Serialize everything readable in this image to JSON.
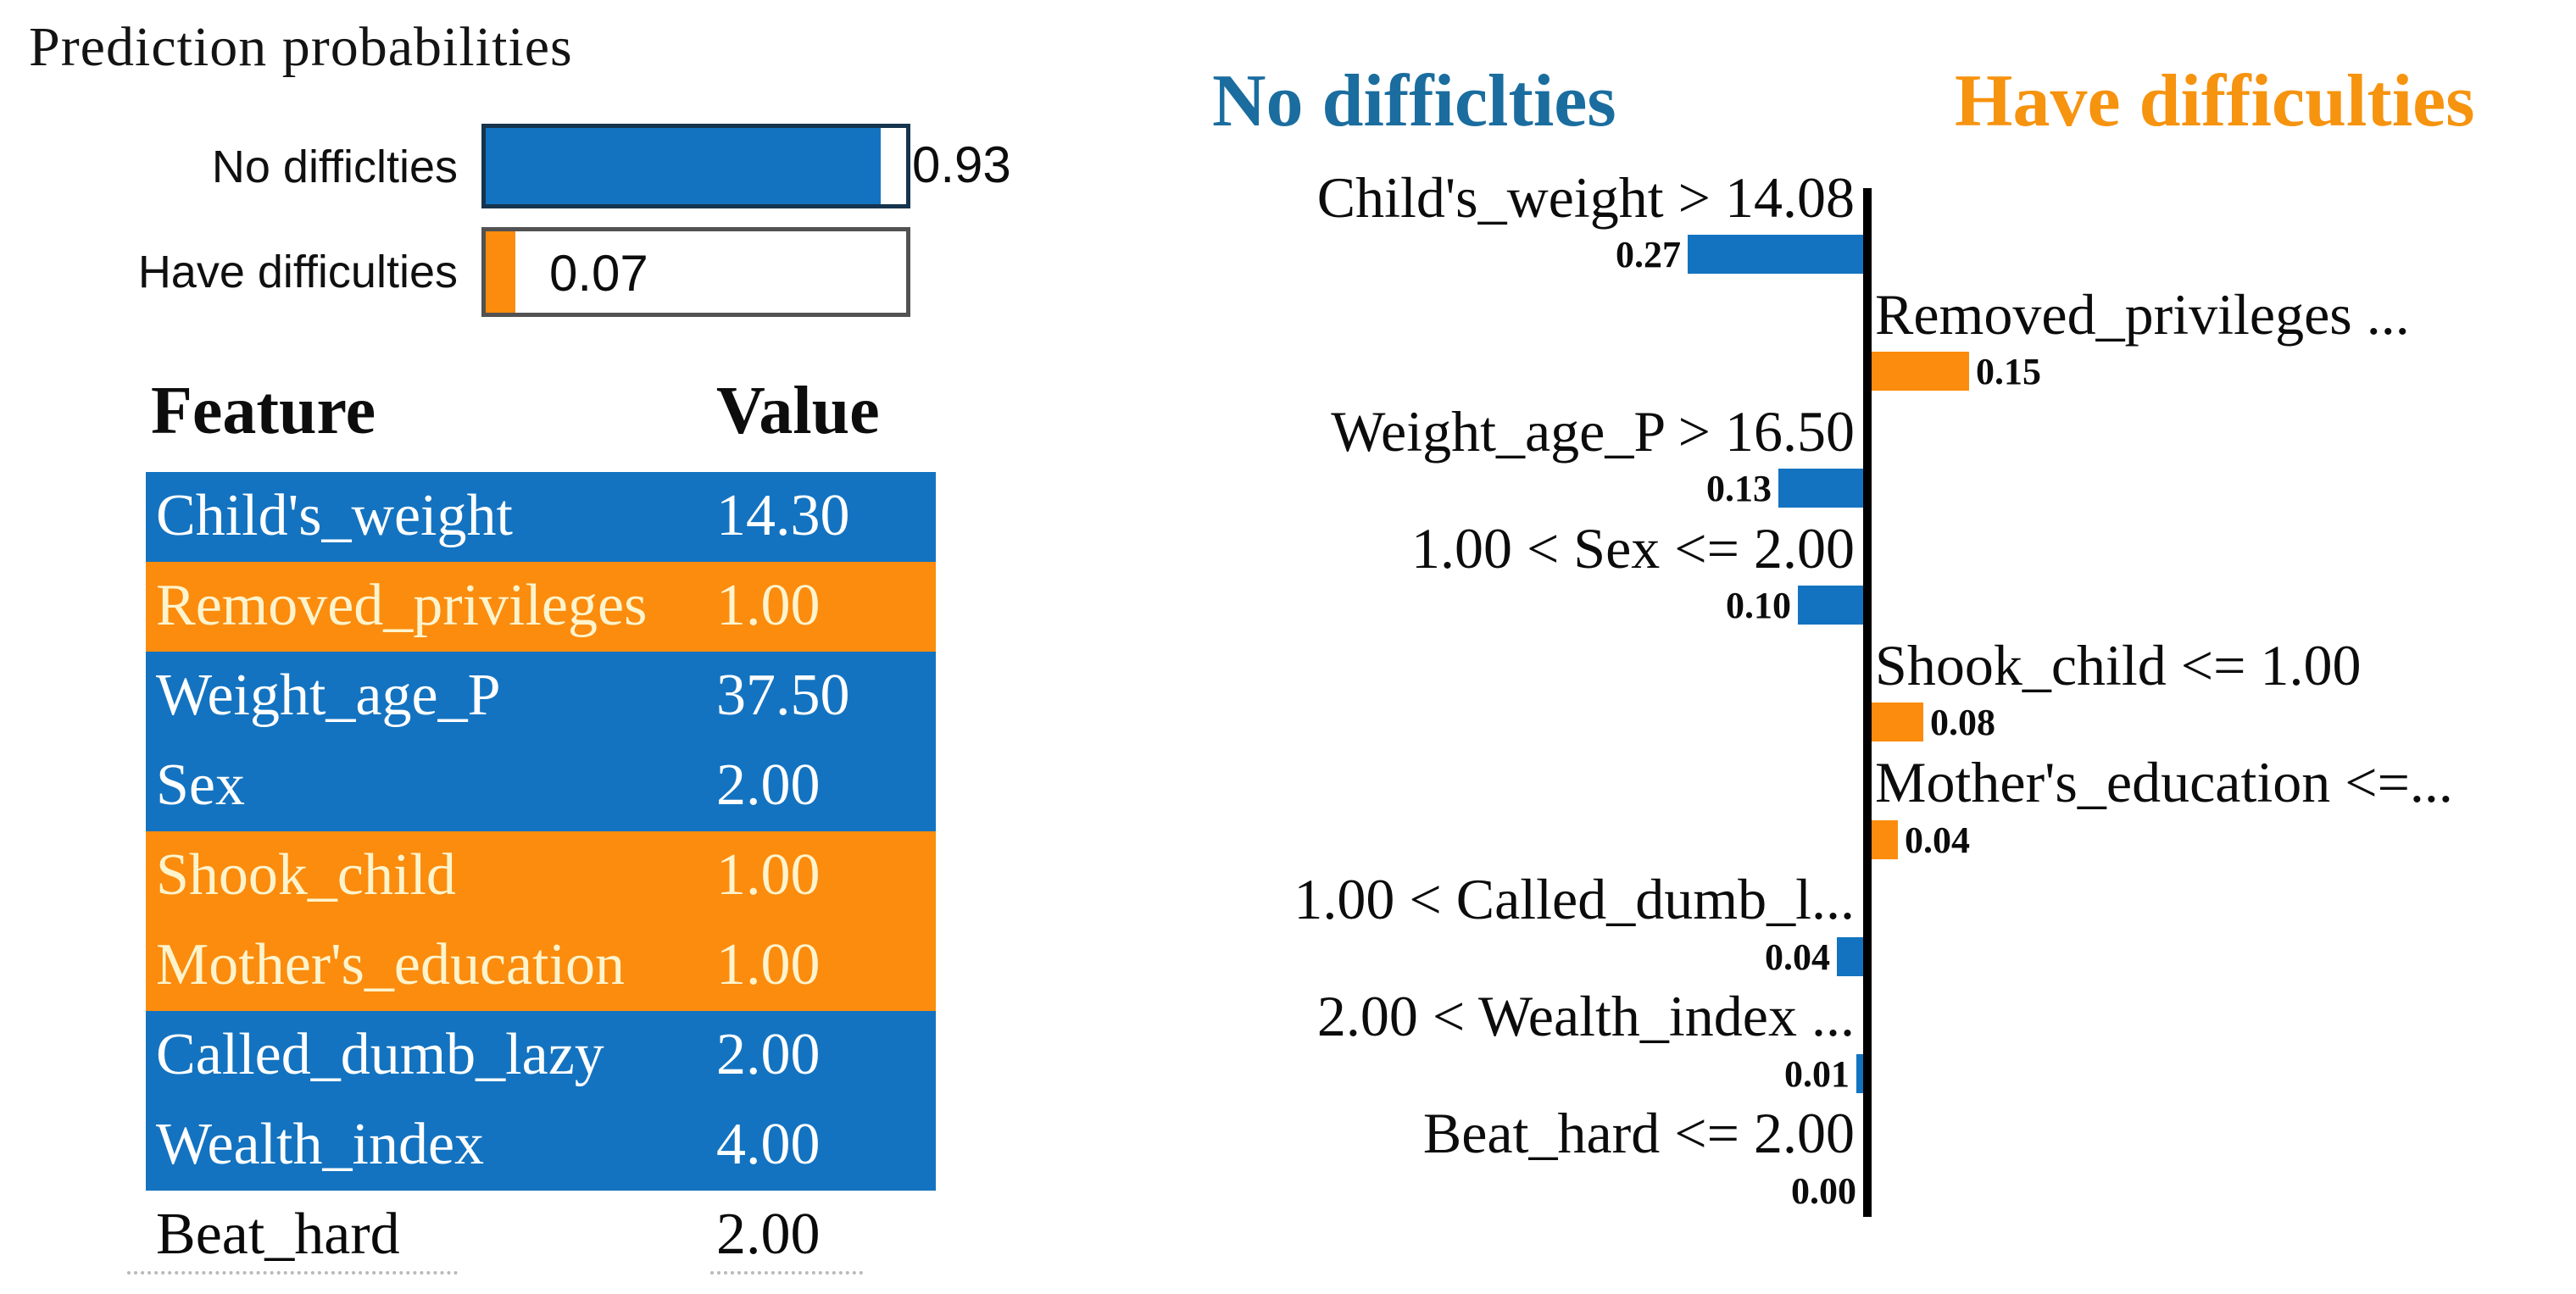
{
  "colors": {
    "blue": "#1373c0",
    "orange": "#fb8c0e",
    "header_blue": "#1a6d9e",
    "header_orange": "#f6930f",
    "axis_black": "#000000"
  },
  "prediction_panel": {
    "title": "Prediction probabilities",
    "bars": [
      {
        "label": "No difficlties",
        "value_label": "0.93",
        "fraction": 0.93,
        "color": "blue"
      },
      {
        "label": "Have difficulties",
        "value_label": "0.07",
        "fraction": 0.07,
        "color": "orange"
      }
    ]
  },
  "feature_table": {
    "feature_header": "Feature",
    "value_header": "Value",
    "rows": [
      {
        "feature": "Child's_weight",
        "value": "14.30",
        "highlight": "blue"
      },
      {
        "feature": "Removed_privileges",
        "value": "1.00",
        "highlight": "orange"
      },
      {
        "feature": "Weight_age_P",
        "value": "37.50",
        "highlight": "blue"
      },
      {
        "feature": "Sex",
        "value": "2.00",
        "highlight": "blue"
      },
      {
        "feature": "Shook_child",
        "value": "1.00",
        "highlight": "orange"
      },
      {
        "feature": "Mother's_education",
        "value": "1.00",
        "highlight": "orange"
      },
      {
        "feature": "Called_dumb_lazy",
        "value": "2.00",
        "highlight": "blue"
      },
      {
        "feature": "Wealth_index",
        "value": "4.00",
        "highlight": "blue"
      },
      {
        "feature": "Beat_hard",
        "value": "2.00",
        "highlight": "none"
      }
    ]
  },
  "chart_data": {
    "type": "bar",
    "orientation": "horizontal-diverging",
    "left_class": "No difficlties",
    "right_class": "Have difficulties",
    "xlim": [
      0,
      0.27
    ],
    "rows": [
      {
        "label": "Child's_weight > 14.08",
        "value": 0.27,
        "value_label": "0.27",
        "side": "left"
      },
      {
        "label": "Removed_privileges ...",
        "value": 0.15,
        "value_label": "0.15",
        "side": "right"
      },
      {
        "label": "Weight_age_P > 16.50",
        "value": 0.13,
        "value_label": "0.13",
        "side": "left"
      },
      {
        "label": "1.00 < Sex <= 2.00",
        "value": 0.1,
        "value_label": "0.10",
        "side": "left"
      },
      {
        "label": "Shook_child <= 1.00",
        "value": 0.08,
        "value_label": "0.08",
        "side": "right"
      },
      {
        "label": "Mother's_education <=...",
        "value": 0.04,
        "value_label": "0.04",
        "side": "right"
      },
      {
        "label": "1.00 < Called_dumb_l...",
        "value": 0.04,
        "value_label": "0.04",
        "side": "left"
      },
      {
        "label": "2.00 < Wealth_index ...",
        "value": 0.01,
        "value_label": "0.01",
        "side": "left"
      },
      {
        "label": "Beat_hard <= 2.00",
        "value": 0.0,
        "value_label": "0.00",
        "side": "left"
      }
    ]
  }
}
